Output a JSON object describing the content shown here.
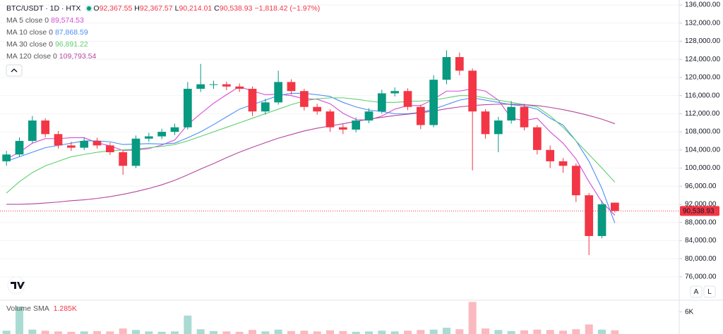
{
  "chart_data": {
    "type": "candlestick",
    "title": "BTC/USDT · 1D · HTX",
    "ohlc_prefixes": [
      "O",
      "H",
      "L",
      "C"
    ],
    "last_labels": {
      "open": "92,367.55",
      "high": "92,367.57",
      "low": "90,214.01",
      "close": "90,538.93"
    },
    "change_label": "−1,818.42 (−1.97%)",
    "up_color": "#089981",
    "down_color": "#f23645",
    "open": [
      101500,
      103000,
      106000,
      110500,
      107500,
      105000,
      104500,
      106000,
      105000,
      103500,
      100500,
      106500,
      107000,
      108000,
      109000,
      117500,
      118500,
      118500,
      118000,
      117500,
      112500,
      114500,
      119000,
      117000,
      113500,
      112500,
      109000,
      108500,
      110500,
      112500,
      116500,
      117000,
      113500,
      109500,
      119500,
      124500,
      121500,
      112500,
      107500,
      110500,
      113500,
      109000,
      104000,
      101500,
      100500,
      94000,
      85000,
      92367.55
    ],
    "high": [
      103800,
      106800,
      111500,
      111000,
      108200,
      105800,
      106800,
      106700,
      105600,
      104000,
      107200,
      107800,
      108700,
      109800,
      119000,
      123000,
      119300,
      119100,
      118700,
      118000,
      115300,
      121500,
      119600,
      117500,
      114200,
      113000,
      109700,
      111200,
      113200,
      117300,
      117800,
      117600,
      114000,
      120500,
      126000,
      125500,
      122000,
      113000,
      111300,
      114800,
      114200,
      109500,
      105000,
      102200,
      101000,
      94500,
      92800,
      92367.57
    ],
    "low": [
      100500,
      102500,
      105500,
      106800,
      104300,
      103800,
      104000,
      104300,
      102900,
      98500,
      100000,
      105800,
      106400,
      107300,
      108500,
      116800,
      117500,
      117200,
      116800,
      111500,
      111800,
      114000,
      116200,
      112700,
      111800,
      108000,
      107500,
      107900,
      109900,
      112000,
      115800,
      112800,
      108600,
      109000,
      118500,
      120500,
      99500,
      106500,
      103500,
      109800,
      108300,
      103000,
      100000,
      99000,
      92500,
      80800,
      84500,
      90214.01
    ],
    "close": [
      103000,
      106000,
      110500,
      107500,
      105000,
      104500,
      106000,
      105000,
      103500,
      100500,
      106500,
      107000,
      108000,
      109000,
      117500,
      118500,
      118500,
      118000,
      117500,
      112500,
      114500,
      119000,
      117000,
      113500,
      112500,
      109000,
      108500,
      110500,
      112500,
      116500,
      117000,
      113500,
      109500,
      119500,
      124500,
      121500,
      112500,
      107500,
      110500,
      113500,
      109000,
      104000,
      101500,
      100500,
      94000,
      85000,
      92000,
      90538.93
    ],
    "last_price": {
      "value": 90538.93,
      "label": "90,538.93"
    },
    "series": [
      {
        "name": "MA 5 close 0",
        "color": "#d54ad6",
        "last_label": "89,574.53",
        "values": [
          102000,
          103500,
          105500,
          106500,
          106500,
          106700,
          106700,
          105600,
          104900,
          103900,
          104000,
          104300,
          105100,
          106200,
          109600,
          112000,
          114300,
          116200,
          118000,
          117000,
          116200,
          116300,
          116000,
          115300,
          115200,
          114200,
          112100,
          110700,
          110600,
          111500,
          113000,
          113800,
          113800,
          115200,
          117000,
          117000,
          117500,
          117000,
          115000,
          111000,
          110500,
          111000,
          108000,
          105500,
          102000,
          97000,
          92500,
          89574.53
        ]
      },
      {
        "name": "MA 10 close 0",
        "color": "#4c8df6",
        "last_label": "87,868.59",
        "values": [
          101500,
          102500,
          103500,
          104500,
          105000,
          105500,
          106000,
          106000,
          105800,
          105200,
          105300,
          105400,
          105300,
          105500,
          106700,
          108000,
          109600,
          111300,
          113000,
          114000,
          115000,
          116000,
          116500,
          116500,
          116200,
          115800,
          114500,
          113500,
          112800,
          112500,
          112000,
          112000,
          112300,
          113000,
          114000,
          115000,
          115500,
          115000,
          114500,
          114000,
          113700,
          113000,
          111000,
          109500,
          106000,
          101500,
          95500,
          87868.59
        ]
      },
      {
        "name": "MA 30 close 0",
        "color": "#5fcf6e",
        "last_label": "96,891.22",
        "values": [
          94500,
          97000,
          99000,
          100500,
          101500,
          102500,
          103000,
          103500,
          103800,
          104000,
          104200,
          104500,
          104800,
          105200,
          106000,
          107000,
          108000,
          109000,
          110000,
          111000,
          112000,
          113000,
          114000,
          114800,
          115300,
          115500,
          115500,
          115200,
          114800,
          114500,
          114500,
          114700,
          114800,
          115000,
          115500,
          116000,
          116000,
          115500,
          115000,
          114500,
          114000,
          113500,
          111500,
          109000,
          106000,
          103000,
          100000,
          96891.22
        ]
      },
      {
        "name": "MA 120 close 0",
        "color": "#b5479c",
        "last_label": "109,793.54",
        "values": [
          92000,
          92000,
          92100,
          92300,
          92500,
          92800,
          93000,
          93300,
          93700,
          94200,
          94800,
          95500,
          96300,
          97300,
          98500,
          99800,
          101000,
          102300,
          103500,
          104600,
          105600,
          106600,
          107400,
          108200,
          108800,
          109300,
          109800,
          110300,
          110800,
          111200,
          111600,
          111900,
          112200,
          112600,
          113100,
          113500,
          113800,
          114000,
          114100,
          114100,
          114000,
          113800,
          113400,
          112900,
          112300,
          111600,
          110800,
          109793.54
        ]
      }
    ],
    "ylim": [
      71000,
      137100
    ],
    "yticks": [
      {
        "value": 76000,
        "label": "76,000.00"
      },
      {
        "value": 80000,
        "label": "80,000.00"
      },
      {
        "value": 84000,
        "label": "84,000.00"
      },
      {
        "value": 88000,
        "label": "88,000.00"
      },
      {
        "value": 92000,
        "label": "92,000.00"
      },
      {
        "value": 96000,
        "label": "96,000.00"
      },
      {
        "value": 100000,
        "label": "100,000.00"
      },
      {
        "value": 104000,
        "label": "104,000.00"
      },
      {
        "value": 108000,
        "label": "108,000.00"
      },
      {
        "value": 112000,
        "label": "112,000.00"
      },
      {
        "value": 116000,
        "label": "116,000.00"
      },
      {
        "value": 120000,
        "label": "120,000.00"
      },
      {
        "value": 124000,
        "label": "124,000.00"
      },
      {
        "value": 128000,
        "label": "128,000.00"
      },
      {
        "value": 132000,
        "label": "132,000.00"
      },
      {
        "value": 136000,
        "label": "136,000.00"
      }
    ],
    "grid": true,
    "volume": {
      "name": "Volume SMA",
      "sma_label": "1.285K",
      "values": [
        900,
        7500,
        1200,
        900,
        700,
        600,
        700,
        800,
        700,
        1500,
        1100,
        700,
        600,
        700,
        5000,
        1300,
        800,
        700,
        600,
        1100,
        700,
        1200,
        800,
        900,
        700,
        1000,
        800,
        600,
        700,
        900,
        700,
        900,
        1100,
        1200,
        1700,
        1300,
        8700,
        1500,
        1100,
        800,
        1000,
        1200,
        1100,
        900,
        1300,
        2600,
        1200,
        1000
      ],
      "ylim": [
        0,
        8800
      ],
      "yticks": [
        {
          "value": 6000,
          "label": "6K"
        }
      ]
    },
    "buttons": [
      "A",
      "L"
    ]
  }
}
